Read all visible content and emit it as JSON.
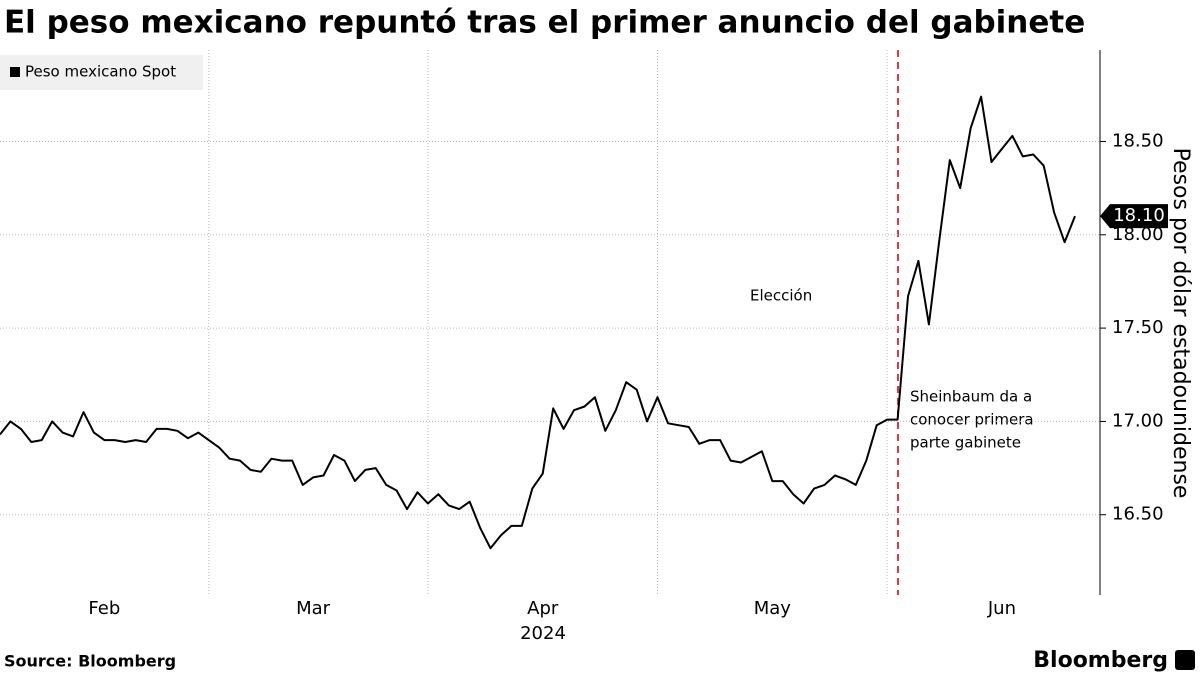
{
  "chart_data": {
    "type": "line",
    "title": "El peso mexicano repuntó tras el primer anuncio del gabinete",
    "ylabel": "Pesos por dólar estadounidense",
    "year": "2024",
    "source": "Source: Bloomberg",
    "brand": "Bloomberg",
    "legend": "top-left",
    "grid": true,
    "categories": [
      null,
      null,
      null,
      null,
      null,
      null,
      null,
      null,
      null,
      null,
      "Feb",
      null,
      null,
      null,
      null,
      null,
      null,
      null,
      null,
      null,
      null,
      null,
      null,
      null,
      null,
      null,
      null,
      null,
      null,
      null,
      "Mar",
      null,
      null,
      null,
      null,
      null,
      null,
      null,
      null,
      null,
      null,
      null,
      null,
      null,
      null,
      null,
      null,
      null,
      null,
      null,
      null,
      null,
      "Apr",
      null,
      null,
      null,
      null,
      null,
      null,
      null,
      null,
      null,
      null,
      null,
      null,
      null,
      null,
      null,
      null,
      null,
      null,
      null,
      null,
      null,
      "May",
      null,
      null,
      null,
      null,
      null,
      null,
      null,
      null,
      null,
      null,
      null,
      null,
      null,
      null,
      null,
      null,
      null,
      null,
      null,
      null,
      null,
      "Jun",
      null,
      null,
      null,
      null,
      null,
      null,
      null
    ],
    "series": [
      {
        "name": "Peso mexicano Spot",
        "color": "#000000",
        "values": [
          16.93,
          17.0,
          16.96,
          16.89,
          16.9,
          17.0,
          16.94,
          16.92,
          17.05,
          16.94,
          16.9,
          16.9,
          16.89,
          16.9,
          16.89,
          16.96,
          16.96,
          16.95,
          16.91,
          16.94,
          16.9,
          16.86,
          16.8,
          16.79,
          16.74,
          16.73,
          16.8,
          16.79,
          16.79,
          16.66,
          16.7,
          16.71,
          16.82,
          16.79,
          16.68,
          16.74,
          16.75,
          16.66,
          16.63,
          16.53,
          16.62,
          16.56,
          16.61,
          16.55,
          16.53,
          16.57,
          16.43,
          16.32,
          16.39,
          16.44,
          16.44,
          16.64,
          16.72,
          17.07,
          16.96,
          17.06,
          17.08,
          17.13,
          16.95,
          17.06,
          17.21,
          17.17,
          17.0,
          17.13,
          16.99,
          16.98,
          16.97,
          16.88,
          16.9,
          16.9,
          16.79,
          16.78,
          16.81,
          16.84,
          16.68,
          16.68,
          16.61,
          16.56,
          16.64,
          16.66,
          16.71,
          16.69,
          16.66,
          16.79,
          16.98,
          17.01,
          17.01,
          17.67,
          17.86,
          17.52,
          17.97,
          18.4,
          18.25,
          18.57,
          18.74,
          18.39,
          18.46,
          18.53,
          18.42,
          18.43,
          18.37,
          18.12,
          17.96,
          18.1
        ],
        "value_labels": [
          null,
          null,
          null,
          null,
          null,
          null,
          null,
          null,
          null,
          null,
          null,
          null,
          null,
          null,
          null,
          null,
          null,
          null,
          null,
          null,
          null,
          null,
          null,
          null,
          null,
          null,
          null,
          null,
          null,
          null,
          null,
          null,
          null,
          null,
          null,
          null,
          null,
          null,
          null,
          null,
          null,
          null,
          null,
          null,
          null,
          null,
          null,
          null,
          null,
          null,
          null,
          null,
          null,
          null,
          null,
          null,
          null,
          null,
          null,
          null,
          null,
          null,
          null,
          null,
          null,
          null,
          null,
          null,
          null,
          null,
          null,
          null,
          null,
          null,
          null,
          null,
          null,
          null,
          null,
          null,
          null,
          null,
          null,
          null,
          null,
          null,
          null,
          null,
          null,
          null,
          null,
          null,
          null,
          null,
          null,
          null,
          null,
          null,
          null,
          null,
          null,
          null,
          null,
          "18.10"
        ]
      }
    ],
    "ylim": [
      16.07,
      18.99
    ],
    "yticks": [
      {
        "value": 16.5,
        "label": "16.50"
      },
      {
        "value": 17,
        "label": "17.00"
      },
      {
        "value": 17.5,
        "label": "17.50"
      },
      {
        "value": 18,
        "label": "18.00"
      },
      {
        "value": 18.5,
        "label": "18.50"
      }
    ],
    "annotations": [
      {
        "text": "Elección"
      },
      {
        "lines": [
          "Sheinbaum da a",
          "conocer primera",
          "parte gabinete"
        ]
      }
    ]
  }
}
